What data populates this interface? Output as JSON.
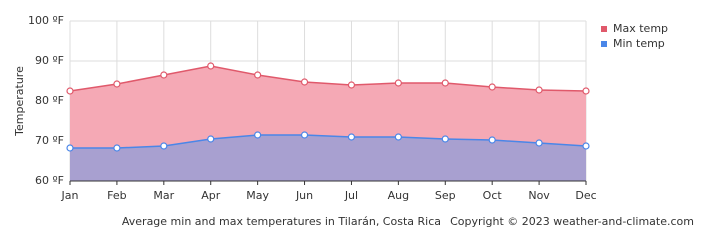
{
  "chart_data": {
    "type": "area",
    "y_label": "Temperature",
    "caption": "Average min and max temperatures in Tilarán, Costa Rica",
    "copyright": "Copyright © 2023  weather-and-climate.com",
    "categories": [
      "Jan",
      "Feb",
      "Mar",
      "Apr",
      "May",
      "Jun",
      "Jul",
      "Aug",
      "Sep",
      "Oct",
      "Nov",
      "Dec"
    ],
    "series": [
      {
        "name": "Max temp",
        "color": "#e0596b",
        "fill": "#f5a9b5",
        "values": [
          82.5,
          84.25,
          86.5,
          88.75,
          86.5,
          84.75,
          84,
          84.5,
          84.5,
          83.5,
          82.75,
          82.5
        ]
      },
      {
        "name": "Min temp",
        "color": "#4a86e8",
        "fill": "#a8a0d0",
        "values": [
          68.25,
          68.25,
          68.75,
          70.5,
          71.5,
          71.5,
          71,
          71,
          70.5,
          70.25,
          69.5,
          68.75
        ]
      }
    ],
    "ylim": [
      60,
      100
    ],
    "yticks": [
      {
        "value": 60,
        "label": "60 ºF"
      },
      {
        "value": 70,
        "label": "70 ºF"
      },
      {
        "value": 80,
        "label": "80 ºF"
      },
      {
        "value": 90,
        "label": "90 ºF"
      },
      {
        "value": 100,
        "label": "100 ºF"
      }
    ],
    "grid": true,
    "legend": "right"
  }
}
